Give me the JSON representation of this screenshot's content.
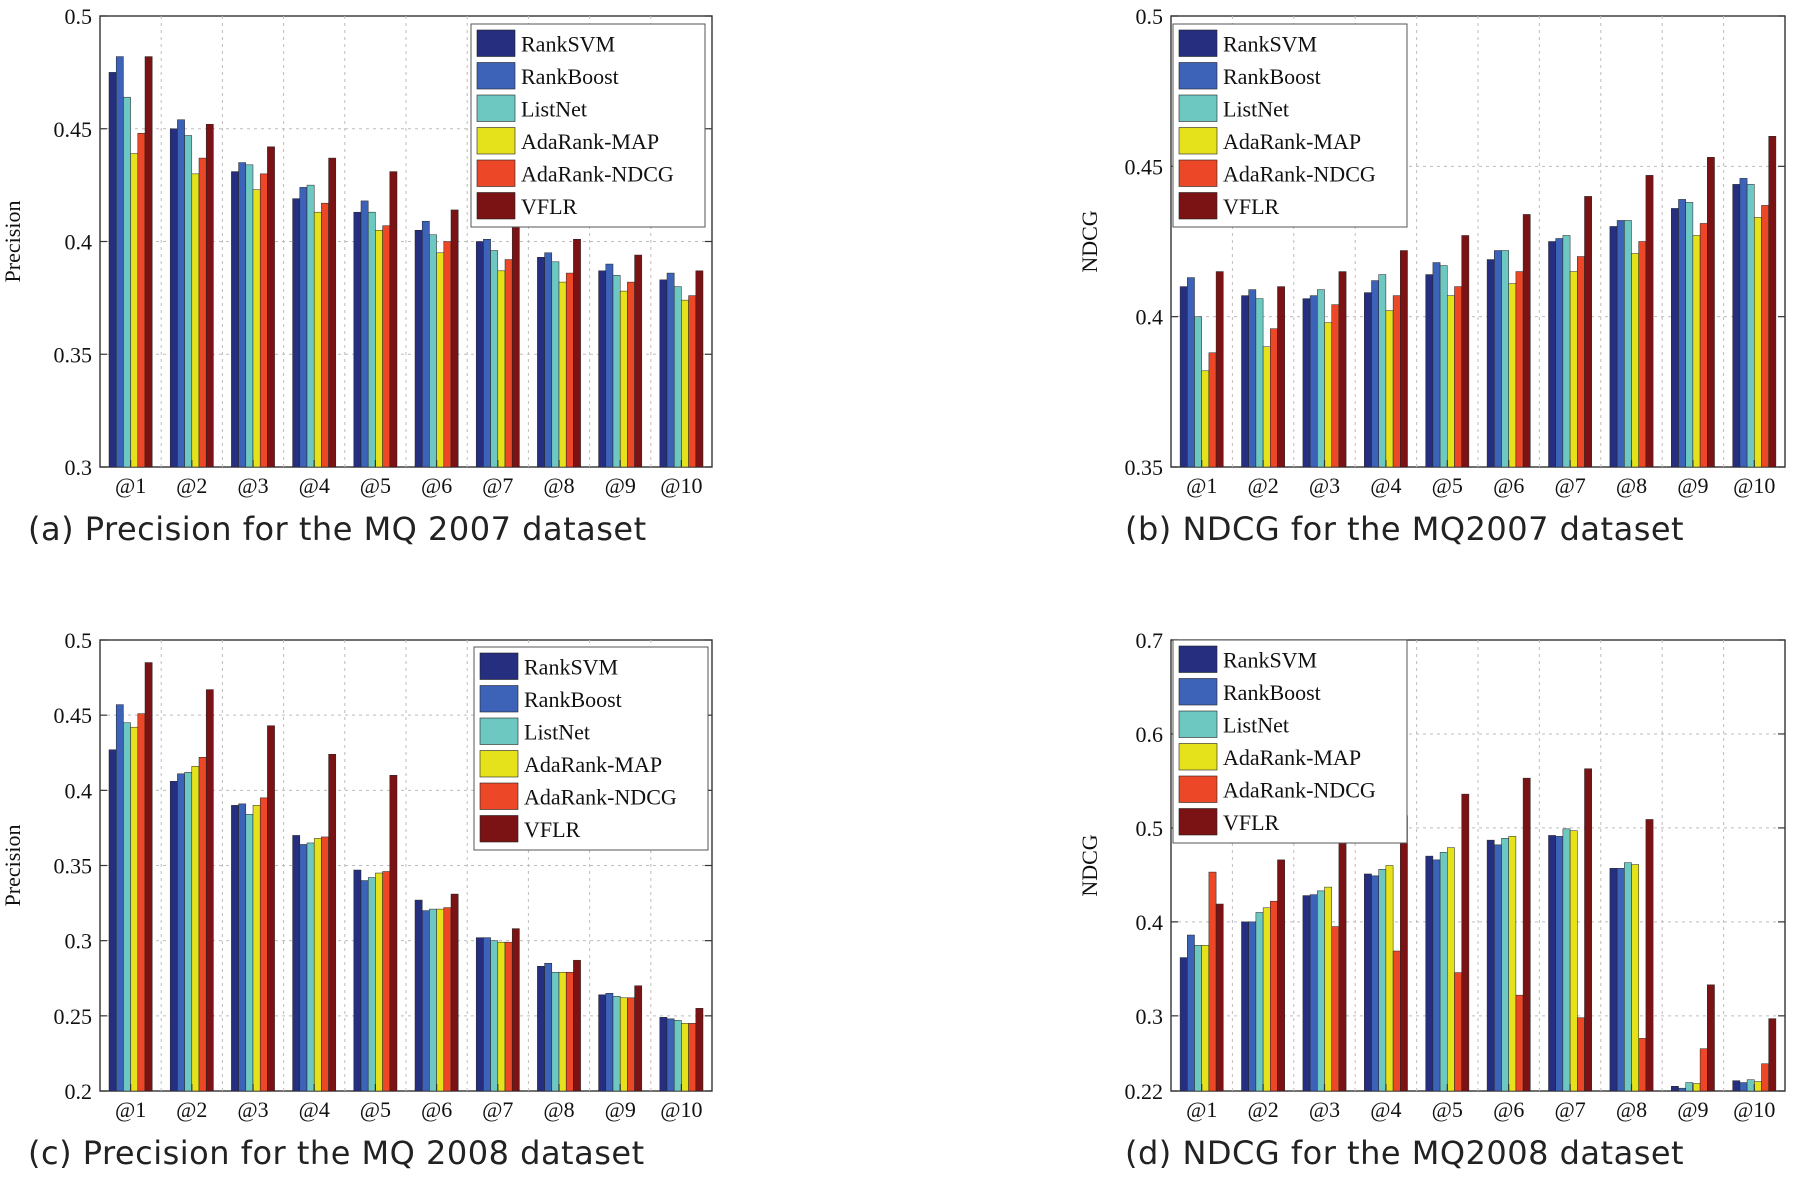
{
  "colors": {
    "RankSVM": "#262f7f",
    "RankBoost": "#3d63b8",
    "ListNet": "#6ec8c2",
    "AdaRank-MAP": "#e5e21c",
    "AdaRank-NDCG": "#ec4726",
    "VFLR": "#7b1315"
  },
  "chart_data": [
    {
      "type": "bar",
      "caption": "(a) Precision for the MQ 2007 dataset",
      "title": "",
      "ylabel": "Precision",
      "xlabel": "",
      "ylim": [
        0.3,
        0.5
      ],
      "yticks": [
        "0.3",
        "0.35",
        "0.4",
        "0.45",
        "0.5"
      ],
      "grid": true,
      "legend_position": "top-right",
      "categories": [
        "@1",
        "@2",
        "@3",
        "@4",
        "@5",
        "@6",
        "@7",
        "@8",
        "@9",
        "@10"
      ],
      "series": [
        {
          "name": "RankSVM",
          "values": [
            0.475,
            0.45,
            0.431,
            0.419,
            0.413,
            0.405,
            0.4,
            0.393,
            0.387,
            0.383
          ]
        },
        {
          "name": "RankBoost",
          "values": [
            0.482,
            0.454,
            0.435,
            0.424,
            0.418,
            0.409,
            0.401,
            0.395,
            0.39,
            0.386
          ]
        },
        {
          "name": "ListNet",
          "values": [
            0.464,
            0.447,
            0.434,
            0.425,
            0.413,
            0.403,
            0.396,
            0.391,
            0.385,
            0.38
          ]
        },
        {
          "name": "AdaRank-MAP",
          "values": [
            0.439,
            0.43,
            0.423,
            0.413,
            0.405,
            0.395,
            0.387,
            0.382,
            0.378,
            0.374
          ]
        },
        {
          "name": "AdaRank-NDCG",
          "values": [
            0.448,
            0.437,
            0.43,
            0.417,
            0.407,
            0.4,
            0.392,
            0.386,
            0.382,
            0.376
          ]
        },
        {
          "name": "VFLR",
          "values": [
            0.482,
            0.452,
            0.442,
            0.437,
            0.431,
            0.414,
            0.407,
            0.401,
            0.394,
            0.387
          ]
        }
      ]
    },
    {
      "type": "bar",
      "caption": "(b) NDCG for the MQ2007 dataset",
      "title": "",
      "ylabel": "NDCG",
      "xlabel": "",
      "ylim": [
        0.35,
        0.5
      ],
      "yticks": [
        "0.35",
        "0.4",
        "0.45",
        "0.5"
      ],
      "grid": true,
      "legend_position": "top-left",
      "categories": [
        "@1",
        "@2",
        "@3",
        "@4",
        "@5",
        "@6",
        "@7",
        "@8",
        "@9",
        "@10"
      ],
      "series": [
        {
          "name": "RankSVM",
          "values": [
            0.41,
            0.407,
            0.406,
            0.408,
            0.414,
            0.419,
            0.425,
            0.43,
            0.436,
            0.444
          ]
        },
        {
          "name": "RankBoost",
          "values": [
            0.413,
            0.409,
            0.407,
            0.412,
            0.418,
            0.422,
            0.426,
            0.432,
            0.439,
            0.446
          ]
        },
        {
          "name": "ListNet",
          "values": [
            0.4,
            0.406,
            0.409,
            0.414,
            0.417,
            0.422,
            0.427,
            0.432,
            0.438,
            0.444
          ]
        },
        {
          "name": "AdaRank-MAP",
          "values": [
            0.382,
            0.39,
            0.398,
            0.402,
            0.407,
            0.411,
            0.415,
            0.421,
            0.427,
            0.433
          ]
        },
        {
          "name": "AdaRank-NDCG",
          "values": [
            0.388,
            0.396,
            0.404,
            0.407,
            0.41,
            0.415,
            0.42,
            0.425,
            0.431,
            0.437
          ]
        },
        {
          "name": "VFLR",
          "values": [
            0.415,
            0.41,
            0.415,
            0.422,
            0.427,
            0.434,
            0.44,
            0.447,
            0.453,
            0.46
          ]
        }
      ]
    },
    {
      "type": "bar",
      "caption": "(c) Precision for the MQ 2008 dataset",
      "title": "",
      "ylabel": "Precision",
      "xlabel": "",
      "ylim": [
        0.2,
        0.5
      ],
      "yticks": [
        "0.2",
        "0.25",
        "0.3",
        "0.35",
        "0.4",
        "0.45",
        "0.5"
      ],
      "grid": true,
      "legend_position": "top-right",
      "categories": [
        "@1",
        "@2",
        "@3",
        "@4",
        "@5",
        "@6",
        "@7",
        "@8",
        "@9",
        "@10"
      ],
      "series": [
        {
          "name": "RankSVM",
          "values": [
            0.427,
            0.406,
            0.39,
            0.37,
            0.347,
            0.327,
            0.302,
            0.283,
            0.264,
            0.249
          ]
        },
        {
          "name": "RankBoost",
          "values": [
            0.457,
            0.411,
            0.391,
            0.364,
            0.34,
            0.32,
            0.302,
            0.285,
            0.265,
            0.248
          ]
        },
        {
          "name": "ListNet",
          "values": [
            0.445,
            0.412,
            0.384,
            0.365,
            0.342,
            0.321,
            0.3,
            0.279,
            0.263,
            0.247
          ]
        },
        {
          "name": "AdaRank-MAP",
          "values": [
            0.442,
            0.416,
            0.39,
            0.368,
            0.345,
            0.321,
            0.299,
            0.279,
            0.262,
            0.245
          ]
        },
        {
          "name": "AdaRank-NDCG",
          "values": [
            0.451,
            0.422,
            0.395,
            0.369,
            0.346,
            0.322,
            0.299,
            0.279,
            0.262,
            0.245
          ]
        },
        {
          "name": "VFLR",
          "values": [
            0.485,
            0.467,
            0.443,
            0.424,
            0.41,
            0.331,
            0.308,
            0.287,
            0.27,
            0.255
          ]
        }
      ]
    },
    {
      "type": "bar",
      "caption": "(d) NDCG for the MQ2008 dataset",
      "title": "",
      "ylabel": "NDCG",
      "xlabel": "",
      "ylim": [
        0.22,
        0.7
      ],
      "yticks": [
        "0.22",
        "0.3",
        "0.4",
        "0.5",
        "0.6",
        "0.7"
      ],
      "ytick_values": [
        0.22,
        0.3,
        0.4,
        0.5,
        0.6,
        0.7
      ],
      "grid": true,
      "legend_position": "top-left",
      "categories": [
        "@1",
        "@2",
        "@3",
        "@4",
        "@5",
        "@6",
        "@7",
        "@8",
        "@9",
        "@10"
      ],
      "series": [
        {
          "name": "RankSVM",
          "values": [
            0.362,
            0.4,
            0.428,
            0.451,
            0.47,
            0.487,
            0.492,
            0.457,
            0.225,
            0.231
          ]
        },
        {
          "name": "RankBoost",
          "values": [
            0.386,
            0.4,
            0.429,
            0.449,
            0.466,
            0.482,
            0.491,
            0.457,
            0.223,
            0.229
          ]
        },
        {
          "name": "ListNet",
          "values": [
            0.375,
            0.41,
            0.433,
            0.456,
            0.474,
            0.489,
            0.499,
            0.463,
            0.229,
            0.232
          ]
        },
        {
          "name": "AdaRank-MAP",
          "values": [
            0.375,
            0.415,
            0.437,
            0.46,
            0.479,
            0.491,
            0.497,
            0.461,
            0.228,
            0.23
          ]
        },
        {
          "name": "AdaRank-NDCG",
          "values": [
            0.453,
            0.422,
            0.395,
            0.369,
            0.346,
            0.322,
            0.298,
            0.276,
            0.265,
            0.249
          ]
        },
        {
          "name": "VFLR",
          "values": [
            0.419,
            0.466,
            0.489,
            0.513,
            0.536,
            0.553,
            0.563,
            0.509,
            0.333,
            0.297
          ]
        }
      ]
    }
  ]
}
